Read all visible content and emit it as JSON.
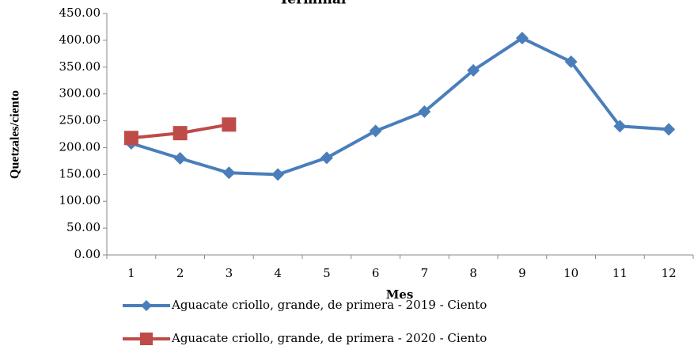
{
  "chart_data": {
    "type": "line",
    "title": "Terminal",
    "x_label": "Mes",
    "y_label": "Quetzales/ciento",
    "categories": [
      "1",
      "2",
      "3",
      "4",
      "5",
      "6",
      "7",
      "8",
      "9",
      "10",
      "11",
      "12"
    ],
    "series": [
      {
        "name": "Aguacate criollo, grande, de primera - 2019 - Ciento",
        "color": "#4a7ebb",
        "marker": "diamond",
        "values": [
          208,
          180,
          153,
          150,
          181,
          231,
          267,
          344,
          404,
          360,
          240,
          234
        ]
      },
      {
        "name": "Aguacate criollo, grande, de primera - 2020 - Ciento",
        "color": "#be4b48",
        "marker": "square",
        "values": [
          218,
          227,
          243,
          null,
          null,
          null,
          null,
          null,
          null,
          null,
          null,
          null
        ]
      }
    ],
    "ylim": [
      0,
      450
    ],
    "yticks": [
      {
        "value": 0,
        "label": "0.00"
      },
      {
        "value": 50,
        "label": "50.00"
      },
      {
        "value": 100,
        "label": "100.00"
      },
      {
        "value": 150,
        "label": "150.00"
      },
      {
        "value": 200,
        "label": "200.00"
      },
      {
        "value": 250,
        "label": "250.00"
      },
      {
        "value": 300,
        "label": "300.00"
      },
      {
        "value": 350,
        "label": "350.00"
      },
      {
        "value": 400,
        "label": "400.00"
      },
      {
        "value": 450,
        "label": "450.00"
      }
    ],
    "grid": false,
    "legend": "bottom"
  }
}
